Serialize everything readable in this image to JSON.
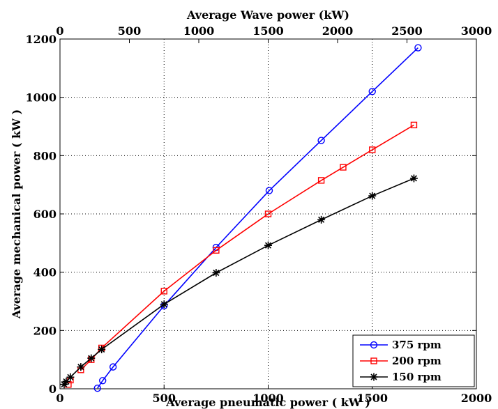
{
  "chart_data": {
    "type": "line",
    "xlabel": "Average pneumatic power ( kW )",
    "ylabel": "Average mechanical power ( kW )",
    "x2label": "Average Wave power (kW)",
    "xlim": [
      0,
      2000
    ],
    "ylim": [
      0,
      1200
    ],
    "x2lim": [
      0,
      3000
    ],
    "xticks": [
      "0",
      "500",
      "1000",
      "1500",
      "2000"
    ],
    "yticks": [
      "0",
      "200",
      "400",
      "600",
      "800",
      "1000",
      "1200"
    ],
    "x2ticks": [
      "0",
      "500",
      "1000",
      "1500",
      "2000",
      "2500",
      "3000"
    ],
    "grid": true,
    "legend_position": "bottom-right",
    "series": [
      {
        "name": "375 rpm",
        "color": "#0000ff",
        "marker": "circle",
        "x": [
          180,
          205,
          255,
          500,
          750,
          1005,
          1255,
          1500,
          1720
        ],
        "y": [
          2,
          28,
          75,
          285,
          485,
          680,
          852,
          1020,
          1170
        ]
      },
      {
        "name": "200 rpm",
        "color": "#ff0000",
        "marker": "square",
        "x": [
          40,
          50,
          100,
          150,
          200,
          500,
          750,
          1000,
          1255,
          1360,
          1500,
          1700
        ],
        "y": [
          15,
          30,
          65,
          100,
          140,
          335,
          475,
          600,
          715,
          760,
          820,
          905
        ],
        "linePoints": [
          2,
          3,
          4,
          5,
          6,
          7,
          8,
          9,
          10,
          11
        ]
      },
      {
        "name": "150 rpm",
        "color": "#000000",
        "marker": "star",
        "x": [
          20,
          30,
          50,
          100,
          150,
          200,
          500,
          750,
          1000,
          1255,
          1500,
          1700
        ],
        "y": [
          15,
          25,
          40,
          75,
          105,
          135,
          290,
          398,
          492,
          580,
          662,
          722
        ]
      }
    ]
  }
}
